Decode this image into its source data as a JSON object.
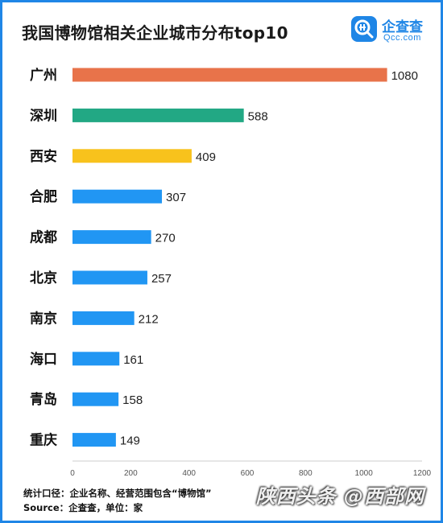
{
  "chart_data": {
    "type": "bar",
    "orientation": "horizontal",
    "title": "我国博物馆相关企业城市分布top10",
    "categories": [
      "广州",
      "深圳",
      "西安",
      "合肥",
      "成都",
      "北京",
      "南京",
      "海口",
      "青岛",
      "重庆"
    ],
    "values": [
      1080,
      588,
      409,
      307,
      270,
      257,
      212,
      161,
      158,
      149
    ],
    "bar_colors": [
      "#e8734a",
      "#22a884",
      "#f8c21c",
      "#2196f3",
      "#2196f3",
      "#2196f3",
      "#2196f3",
      "#2196f3",
      "#2196f3",
      "#2196f3"
    ],
    "x_ticks": [
      0,
      200,
      400,
      600,
      800,
      1000,
      1200
    ],
    "xlim": [
      0,
      1200
    ],
    "grid": false,
    "legend": "none"
  },
  "logo": {
    "name": "企查查",
    "domain": "Qcc.com",
    "color": "#1f86e6"
  },
  "footer": {
    "line1": "统计口径：企业名称、经营范围包含“博物馆”",
    "line2": "Source：企查查，单位：家"
  },
  "watermark": "陕西头条 @西部网"
}
